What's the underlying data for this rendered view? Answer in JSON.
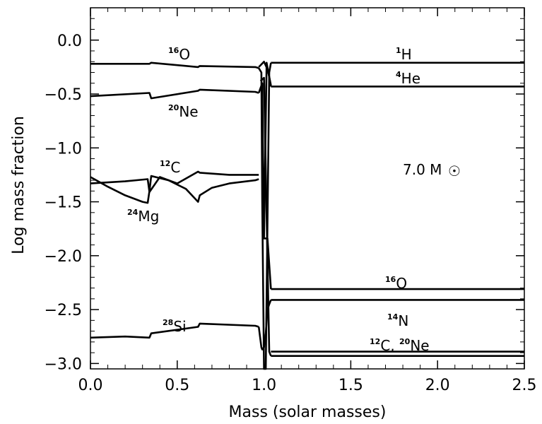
{
  "chart_data": {
    "type": "line",
    "title": "",
    "xlabel": "Mass (solar masses)",
    "ylabel": "Log mass fraction",
    "xlim": [
      0.0,
      2.5
    ],
    "ylim": [
      -3.05,
      0.3
    ],
    "x_ticks": [
      "0.0",
      "0.5",
      "1.0",
      "1.5",
      "2.0",
      "2.5"
    ],
    "y_ticks": [
      "0.0",
      "-0.5",
      "-1.0",
      "-1.5",
      "-2.0",
      "-2.5",
      "-3.0"
    ],
    "model_label": {
      "text": "7.0 M",
      "symbol": "☉"
    },
    "labels": [
      {
        "iso": "16",
        "el": "O",
        "text": "16O"
      },
      {
        "iso": "20",
        "el": "Ne",
        "text": "20Ne"
      },
      {
        "iso": "12",
        "el": "C",
        "text": "12C"
      },
      {
        "iso": "24",
        "el": "Mg",
        "text": "24Mg"
      },
      {
        "iso": "28",
        "el": "Si",
        "text": "28Si"
      },
      {
        "iso": "1",
        "el": "H",
        "text": "1H"
      },
      {
        "iso": "4",
        "el": "He",
        "text": "4He"
      },
      {
        "iso": "16",
        "el": "O",
        "text": "16O"
      },
      {
        "iso": "14",
        "el": "N",
        "text": "14N"
      },
      {
        "iso": "12",
        "el": "C, ",
        "iso2": "20",
        "el2": "Ne",
        "text": "12C, 20Ne"
      }
    ],
    "series": [
      {
        "name": "16O core",
        "x": [
          0.0,
          0.34,
          0.35,
          0.62,
          0.63,
          0.95,
          0.97
        ],
        "y": [
          -0.22,
          -0.22,
          -0.21,
          -0.25,
          -0.24,
          -0.25,
          -0.26
        ]
      },
      {
        "name": "20Ne core",
        "x": [
          0.0,
          0.34,
          0.35,
          0.62,
          0.63,
          0.95,
          0.97
        ],
        "y": [
          -0.52,
          -0.49,
          -0.54,
          -0.47,
          -0.46,
          -0.48,
          -0.49
        ]
      },
      {
        "name": "12C core",
        "x": [
          0.0,
          0.2,
          0.33,
          0.34,
          0.4,
          0.5,
          0.62,
          0.63,
          0.8,
          0.95,
          0.97
        ],
        "y": [
          -1.33,
          -1.31,
          -1.29,
          -1.41,
          -1.27,
          -1.33,
          -1.22,
          -1.23,
          -1.25,
          -1.25,
          -1.25
        ]
      },
      {
        "name": "24Mg core",
        "x": [
          0.0,
          0.1,
          0.2,
          0.3,
          0.33,
          0.34,
          0.35,
          0.45,
          0.55,
          0.62,
          0.63,
          0.7,
          0.8,
          0.9,
          0.95,
          0.97
        ],
        "y": [
          -1.27,
          -1.36,
          -1.44,
          -1.5,
          -1.51,
          -1.4,
          -1.26,
          -1.3,
          -1.38,
          -1.5,
          -1.44,
          -1.37,
          -1.33,
          -1.31,
          -1.3,
          -1.29
        ]
      },
      {
        "name": "28Si core",
        "x": [
          0.0,
          0.2,
          0.34,
          0.35,
          0.62,
          0.63,
          0.95,
          0.97
        ],
        "y": [
          -2.76,
          -2.75,
          -2.76,
          -2.72,
          -2.66,
          -2.63,
          -2.65,
          -2.66
        ]
      },
      {
        "name": "1H envelope",
        "x": [
          1.04,
          2.5
        ],
        "y": [
          -0.21,
          -0.21
        ]
      },
      {
        "name": "4He envelope",
        "x": [
          1.04,
          2.5
        ],
        "y": [
          -0.43,
          -0.43
        ]
      },
      {
        "name": "16O envelope",
        "x": [
          1.04,
          2.5
        ],
        "y": [
          -2.31,
          -2.31
        ]
      },
      {
        "name": "14N envelope",
        "x": [
          1.04,
          2.5
        ],
        "y": [
          -2.41,
          -2.41
        ]
      },
      {
        "name": "12C envelope",
        "x": [
          1.04,
          2.5
        ],
        "y": [
          -2.89,
          -2.89
        ]
      },
      {
        "name": "20Ne envelope",
        "x": [
          1.04,
          2.5
        ],
        "y": [
          -2.93,
          -2.93
        ]
      },
      {
        "name": "transition A",
        "x": [
          0.97,
          0.985,
          0.99,
          1.0,
          1.01,
          1.03,
          1.04
        ],
        "y": [
          -0.26,
          -0.3,
          -1.5,
          -3.05,
          -3.05,
          -0.3,
          -0.21
        ]
      },
      {
        "name": "transition B",
        "x": [
          0.97,
          0.99,
          1.0,
          1.015,
          1.04
        ],
        "y": [
          -0.49,
          -0.4,
          -1.84,
          -0.21,
          -0.43
        ]
      },
      {
        "name": "transition C",
        "x": [
          0.97,
          0.985,
          0.99,
          1.0,
          1.01,
          1.02,
          1.03,
          1.04
        ],
        "y": [
          -2.66,
          -2.85,
          -2.87,
          -2.85,
          -2.72,
          -2.5,
          -2.45,
          -2.41
        ]
      },
      {
        "name": "transition D",
        "x": [
          0.97,
          1.0,
          1.02,
          1.03,
          1.04
        ],
        "y": [
          -0.25,
          -0.2,
          -0.27,
          -0.34,
          -0.42
        ]
      },
      {
        "name": "transition E",
        "x": [
          1.0,
          1.02,
          1.04
        ],
        "y": [
          -1.84,
          -1.84,
          -2.31
        ]
      },
      {
        "name": "transition F",
        "x": [
          0.98,
          1.0,
          1.03,
          1.04
        ],
        "y": [
          -0.38,
          -0.35,
          -2.89,
          -2.93
        ]
      }
    ]
  }
}
